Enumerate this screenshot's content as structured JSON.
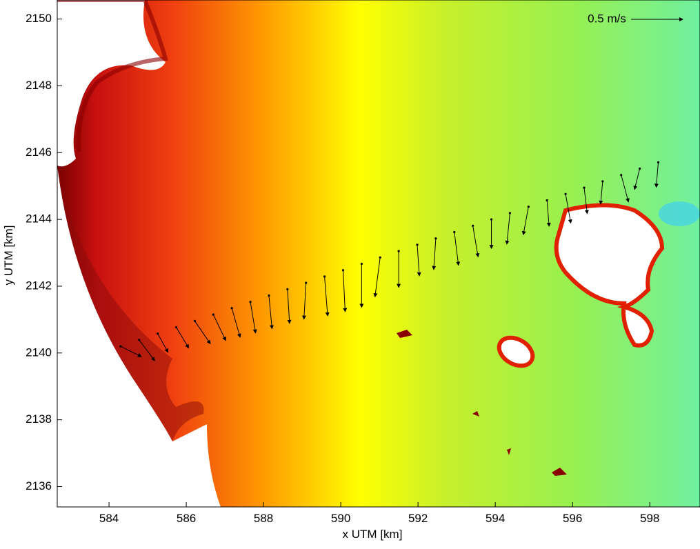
{
  "chart_data": {
    "type": "quiver",
    "xlabel": "x UTM [km]",
    "ylabel": "y UTM [km]",
    "xlim": [
      582.66,
      599.3
    ],
    "ylim": [
      2135.39,
      2150.57
    ],
    "xticks": [
      584,
      586,
      588,
      590,
      592,
      594,
      596,
      598
    ],
    "yticks": [
      2136,
      2138,
      2140,
      2142,
      2144,
      2146,
      2148,
      2150
    ],
    "color": "#000000",
    "reference_arrow": {
      "label": "0.5 m/s",
      "value": 0.5
    },
    "x": [
      584.3,
      584.78,
      585.26,
      585.74,
      586.22,
      586.7,
      587.18,
      587.66,
      588.14,
      588.62,
      589.1,
      589.58,
      590.06,
      590.54,
      591.02,
      591.5,
      591.98,
      592.46,
      592.94,
      593.42,
      593.9,
      594.38,
      594.86,
      595.34,
      595.82,
      596.3,
      596.78,
      597.26,
      597.74,
      598.22
    ],
    "y": [
      2140.2,
      2140.39,
      2140.58,
      2140.77,
      2140.96,
      2141.15,
      2141.34,
      2141.53,
      2141.72,
      2141.91,
      2142.1,
      2142.29,
      2142.48,
      2142.67,
      2142.86,
      2143.05,
      2143.24,
      2143.43,
      2143.62,
      2143.81,
      2144.0,
      2144.19,
      2144.38,
      2144.57,
      2144.76,
      2144.95,
      2145.14,
      2145.33,
      2145.52,
      2145.71
    ],
    "u": [
      0.2,
      0.15,
      0.1,
      0.12,
      0.15,
      0.12,
      0.08,
      0.05,
      0.03,
      0.02,
      -0.02,
      0.03,
      0.02,
      0.0,
      -0.05,
      0.0,
      0.02,
      -0.02,
      0.04,
      0.05,
      0.0,
      -0.03,
      -0.05,
      0.02,
      0.05,
      0.03,
      -0.02,
      0.07,
      -0.05,
      -0.02
    ],
    "v": [
      -0.1,
      -0.2,
      -0.18,
      -0.2,
      -0.22,
      -0.25,
      -0.28,
      -0.3,
      -0.32,
      -0.33,
      -0.35,
      -0.38,
      -0.4,
      -0.42,
      -0.38,
      -0.35,
      -0.3,
      -0.3,
      -0.32,
      -0.3,
      -0.28,
      -0.3,
      -0.27,
      -0.25,
      -0.28,
      -0.25,
      -0.22,
      -0.26,
      -0.2,
      -0.24
    ]
  }
}
